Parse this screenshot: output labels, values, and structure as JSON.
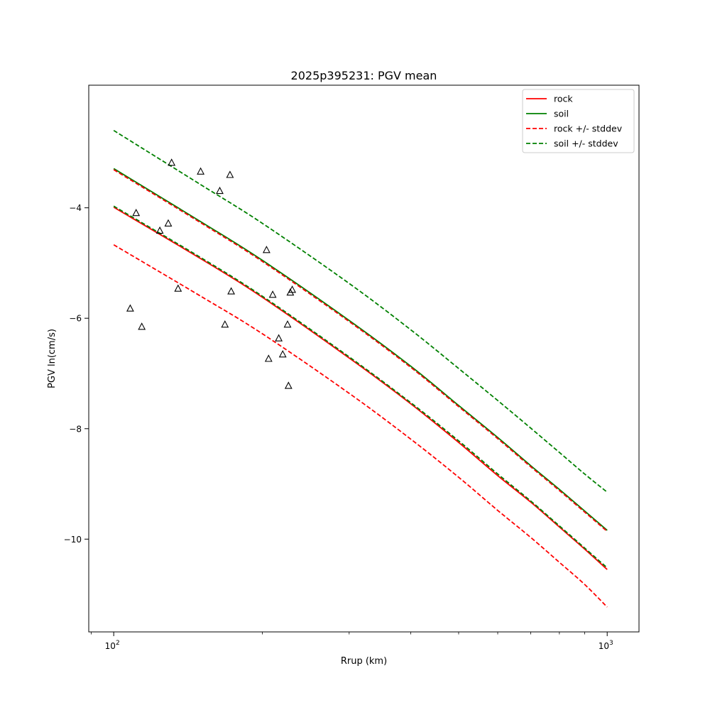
{
  "chart_data": {
    "type": "line",
    "title": "2025p395231: PGV mean",
    "xlabel": "Rrup (km)",
    "ylabel": "PGV ln(cm/s)",
    "xscale": "log",
    "xlim": [
      89,
      1160
    ],
    "ylim": [
      -11.68,
      -1.78
    ],
    "x_ticks": [
      100,
      1000
    ],
    "x_tick_labels": [
      {
        "base": "10",
        "exp": "2"
      },
      {
        "base": "10",
        "exp": "3"
      }
    ],
    "y_ticks": [
      -10,
      -8,
      -6,
      -4
    ],
    "y_tick_labels": [
      "−10",
      "−8",
      "−6",
      "−4"
    ],
    "legend_position": "top-right",
    "grid": false,
    "x": [
      100,
      150,
      200,
      300,
      400,
      500,
      600,
      700,
      800,
      900,
      1000
    ],
    "series": [
      {
        "name": "rock",
        "color": "#ff0000",
        "style": "solid",
        "values": [
          -3.99,
          -4.92,
          -5.62,
          -6.72,
          -7.55,
          -8.25,
          -8.85,
          -9.33,
          -9.78,
          -10.18,
          -10.55
        ]
      },
      {
        "name": "soil",
        "color": "#008000",
        "style": "solid",
        "values": [
          -3.29,
          -4.25,
          -4.95,
          -6.04,
          -6.87,
          -7.58,
          -8.16,
          -8.67,
          -9.1,
          -9.49,
          -9.84
        ]
      },
      {
        "name": "rock +/- stddev",
        "color": "#ff0000",
        "style": "dashed",
        "values": [
          -3.31,
          -4.27,
          -4.97,
          -6.06,
          -6.89,
          -7.6,
          -8.18,
          -8.69,
          -9.12,
          -9.51,
          -9.86
        ]
      },
      {
        "name": "",
        "color": "#ff0000",
        "style": "dashed",
        "values": [
          -4.67,
          -5.6,
          -6.28,
          -7.36,
          -8.19,
          -8.88,
          -9.48,
          -9.97,
          -10.42,
          -10.82,
          -11.23
        ]
      },
      {
        "name": "soil +/- stddev",
        "color": "#008000",
        "style": "dashed",
        "values": [
          -2.6,
          -3.58,
          -4.28,
          -5.37,
          -6.21,
          -6.91,
          -7.49,
          -7.99,
          -8.43,
          -8.82,
          -9.15
        ]
      },
      {
        "name": "",
        "color": "#008000",
        "style": "dashed",
        "values": [
          -3.97,
          -4.9,
          -5.6,
          -6.7,
          -7.53,
          -8.22,
          -8.82,
          -9.31,
          -9.76,
          -10.16,
          -10.52
        ]
      }
    ],
    "observations": {
      "marker": "triangle-open",
      "color": "#000000",
      "points": [
        [
          131,
          -3.18
        ],
        [
          150,
          -3.34
        ],
        [
          164,
          -3.69
        ],
        [
          172,
          -3.4
        ],
        [
          111,
          -4.09
        ],
        [
          124,
          -4.41
        ],
        [
          129,
          -4.28
        ],
        [
          204,
          -4.76
        ],
        [
          135,
          -5.46
        ],
        [
          173,
          -5.51
        ],
        [
          210,
          -5.57
        ],
        [
          228,
          -5.53
        ],
        [
          230,
          -5.48
        ],
        [
          108,
          -5.82
        ],
        [
          114,
          -6.15
        ],
        [
          168,
          -6.11
        ],
        [
          216,
          -6.36
        ],
        [
          225,
          -6.11
        ],
        [
          206,
          -6.73
        ],
        [
          220,
          -6.65
        ],
        [
          226,
          -7.22
        ]
      ]
    }
  }
}
